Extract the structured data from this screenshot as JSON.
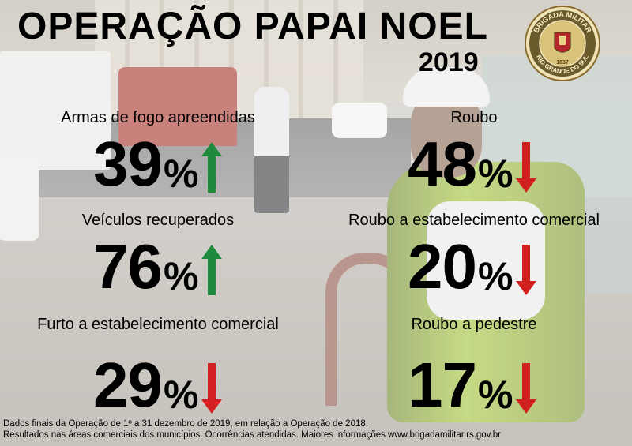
{
  "header": {
    "title": "OPERAÇÃO PAPAI NOEL",
    "year": "2019",
    "seal": {
      "top": "BRIGADA MILITAR",
      "bottom": "RIO GRANDE DO SUL",
      "year": "1837"
    }
  },
  "stats": [
    {
      "label": "Armas de fogo apreendidas",
      "value": "39",
      "unit": "%",
      "trend": "up"
    },
    {
      "label": "Roubo",
      "value": "48",
      "unit": "%",
      "trend": "down"
    },
    {
      "label": "Veículos recuperados",
      "value": "76",
      "unit": "%",
      "trend": "up"
    },
    {
      "label": "Roubo a estabelecimento comercial",
      "value": "20",
      "unit": "%",
      "trend": "down"
    },
    {
      "label": "Furto a estabelecimento comercial",
      "value": "29",
      "unit": "%",
      "trend": "down"
    },
    {
      "label": "Roubo a pedestre",
      "value": "17",
      "unit": "%",
      "trend": "down"
    }
  ],
  "footer": {
    "line1": "Dados finais da Operação de 1º a 31 dezembro de 2019, em relação a Operação de 2018.",
    "line2": "Resultados nas áreas comerciais dos municípios. Ocorrências atendidas. Maiores informações www.brigadamilitar.rs.gov.br"
  },
  "colors": {
    "up": "#1e8a3c",
    "down": "#d21f1f"
  },
  "icons": {
    "up": "arrow-up-icon",
    "down": "arrow-down-icon"
  }
}
